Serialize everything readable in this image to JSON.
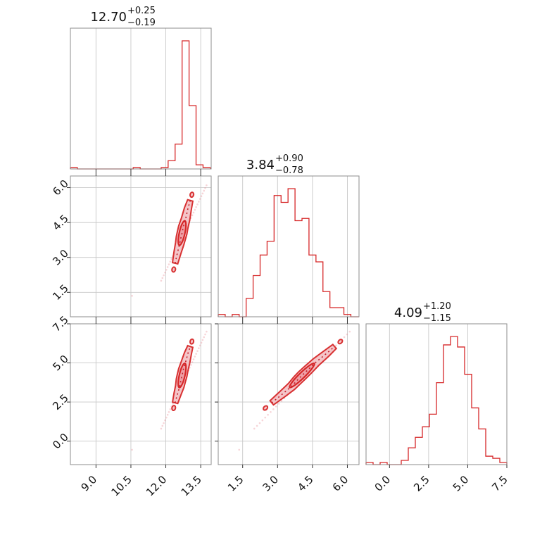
{
  "colors": {
    "accent": "#d62728",
    "contour_fill": "#f4c2c6",
    "grid": "#c8c8c8"
  },
  "chart_data": {
    "type": "corner",
    "parameters": [
      {
        "title": {
          "median": "12.70",
          "plus": "+0.25",
          "minus": "−0.19"
        },
        "range": [
          7.9,
          13.95
        ],
        "ticks": [
          "9.0",
          "10.5",
          "12.0",
          "13.5"
        ],
        "tick_values": [
          9.0,
          10.5,
          12.0,
          13.5
        ],
        "hist": {
          "edges": [
            7.9,
            8.2,
            8.5,
            8.8,
            9.1,
            9.4,
            9.7,
            10.0,
            10.3,
            10.6,
            10.9,
            11.2,
            11.5,
            11.8,
            12.1,
            12.4,
            12.7,
            13.0,
            13.3,
            13.6,
            13.9
          ],
          "counts": [
            1,
            0,
            0,
            0,
            0,
            0,
            0,
            0,
            0,
            1,
            0,
            0,
            0,
            1,
            6,
            18,
            93,
            46,
            3,
            1
          ]
        }
      },
      {
        "title": {
          "median": "3.84",
          "plus": "+0.90",
          "minus": "−0.78"
        },
        "range": [
          0.45,
          6.5
        ],
        "ticks": [
          "1.5",
          "3.0",
          "4.5",
          "6.0"
        ],
        "tick_values": [
          1.5,
          3.0,
          4.5,
          6.0
        ],
        "hist": {
          "edges": [
            0.45,
            0.75,
            1.05,
            1.35,
            1.65,
            1.95,
            2.25,
            2.55,
            2.85,
            3.15,
            3.45,
            3.75,
            4.05,
            4.35,
            4.65,
            4.95,
            5.25,
            5.55,
            5.85,
            6.15,
            6.45
          ],
          "counts": [
            1,
            0,
            1,
            0,
            8,
            18,
            27,
            33,
            53,
            50,
            56,
            42,
            43,
            27,
            24,
            11,
            4,
            4,
            1,
            0
          ]
        }
      },
      {
        "title": {
          "median": "4.09",
          "plus": "+1.20",
          "minus": "−1.15"
        },
        "range": [
          -1.5,
          7.5
        ],
        "ticks": [
          "0.0",
          "2.5",
          "5.0",
          "7.5"
        ],
        "tick_values": [
          0.0,
          2.5,
          5.0,
          7.5
        ],
        "hist": {
          "edges": [
            -1.5,
            -1.05,
            -0.6,
            -0.15,
            0.3,
            0.75,
            1.2,
            1.65,
            2.1,
            2.55,
            3.0,
            3.45,
            3.9,
            4.35,
            4.8,
            5.25,
            5.7,
            6.15,
            6.6,
            7.05,
            7.5
          ],
          "counts": [
            1,
            0,
            1,
            0,
            0,
            2,
            8,
            13,
            18,
            24,
            39,
            57,
            61,
            56,
            43,
            27,
            17,
            4,
            3,
            1
          ]
        }
      }
    ],
    "core_samples": {
      "p0": [
        12.4,
        12.5,
        12.6,
        12.65,
        12.7,
        12.75,
        12.85,
        12.95,
        13.05
      ],
      "p1": [
        2.75,
        3.2,
        3.6,
        3.85,
        4.05,
        4.3,
        4.65,
        5.1,
        5.45
      ],
      "p2": [
        2.45,
        3.0,
        3.5,
        3.9,
        4.2,
        4.55,
        5.05,
        5.6,
        6.05
      ]
    },
    "tails": [
      {
        "p0": [
          11.8,
          13.75
        ],
        "p1": [
          2.0,
          6.1
        ],
        "p2": [
          0.8,
          7.0
        ]
      },
      {
        "p0": [
          10.55,
          10.55
        ],
        "p1": [
          1.35,
          1.35
        ],
        "p2": [
          -0.55,
          -0.55
        ]
      }
    ]
  }
}
